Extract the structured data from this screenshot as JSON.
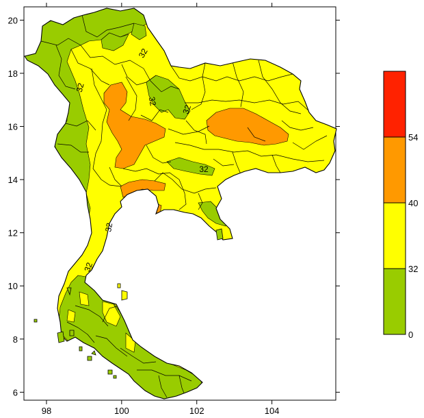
{
  "map": {
    "x_ticks": [
      "98",
      "100",
      "102",
      "104"
    ],
    "y_ticks": [
      "6",
      "8",
      "10",
      "12",
      "14",
      "16",
      "18",
      "20"
    ],
    "x_range": [
      97.4,
      105.7
    ],
    "y_range": [
      5.7,
      20.5
    ],
    "contour_labels": [
      "32",
      "32",
      "32",
      "32",
      "32",
      "32",
      "32"
    ]
  },
  "legend": {
    "bins": [
      {
        "from": 0,
        "to": 32,
        "color": "#99cc00"
      },
      {
        "from": 32,
        "to": 40,
        "color": "#ffff00"
      },
      {
        "from": 40,
        "to": 54,
        "color": "#ff9900"
      },
      {
        "from": 54,
        "to": null,
        "color": "#ff2200"
      }
    ],
    "labels": [
      "0",
      "32",
      "40",
      "54"
    ]
  },
  "colors": {
    "green": "#99cc00",
    "yellow": "#ffff00",
    "orange": "#ff9900",
    "red": "#ff2200"
  }
}
